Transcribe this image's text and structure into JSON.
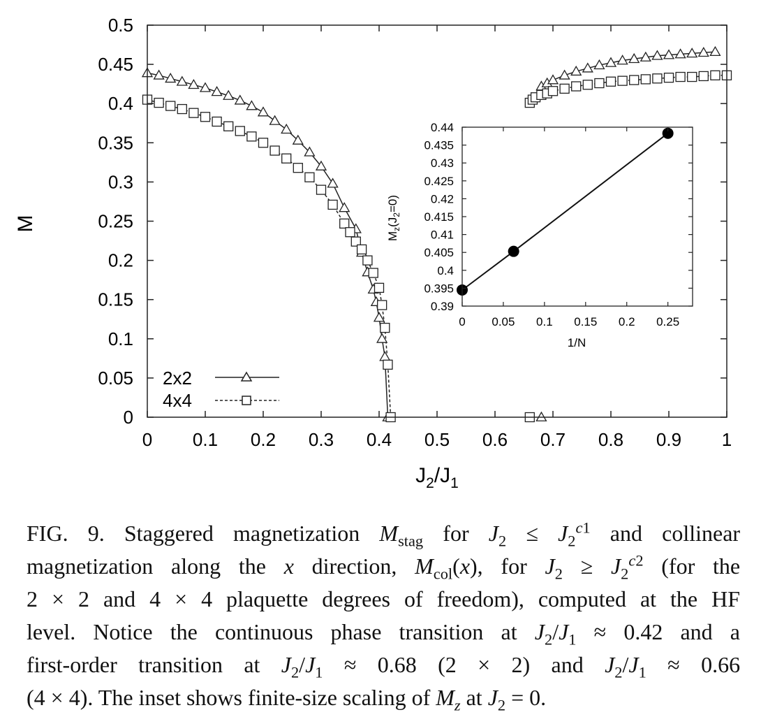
{
  "main_chart": {
    "xlabel": "J",
    "xlabel_sub1": "2",
    "xlabel_mid": "/J",
    "xlabel_sub2": "1",
    "ylabel": "M",
    "xlim": [
      0,
      1
    ],
    "ylim": [
      0,
      0.5
    ],
    "xticks": [
      "0",
      "0.1",
      "0.2",
      "0.3",
      "0.4",
      "0.5",
      "0.6",
      "0.7",
      "0.8",
      "0.9",
      "1"
    ],
    "yticks": [
      "0",
      "0.05",
      "0.1",
      "0.15",
      "0.2",
      "0.25",
      "0.3",
      "0.35",
      "0.4",
      "0.45",
      "0.5"
    ],
    "legend_2x2": "2x2",
    "legend_4x4": "4x4"
  },
  "inset_chart": {
    "xlabel": "1/N",
    "ylabel": "M_z(J_2=0)",
    "xlim": [
      0,
      0.28
    ],
    "ylim": [
      0.39,
      0.44
    ],
    "xticks": [
      "0",
      "0.05",
      "0.1",
      "0.15",
      "0.2",
      "0.25"
    ],
    "yticks": [
      "0.39",
      "0.395",
      "0.4",
      "0.405",
      "0.41",
      "0.415",
      "0.42",
      "0.425",
      "0.43",
      "0.435",
      "0.44"
    ]
  },
  "chart_data": [
    {
      "type": "line",
      "xlabel": "J2/J1",
      "ylabel": "M",
      "xlim": [
        0,
        1
      ],
      "ylim": [
        0,
        0.5
      ],
      "grid": false,
      "legend_position": "bottom-left",
      "series": [
        {
          "name": "2x2",
          "marker": "triangle",
          "line_style": "solid",
          "segments": [
            {
              "x": [
                0,
                0.02,
                0.04,
                0.06,
                0.08,
                0.1,
                0.12,
                0.14,
                0.16,
                0.18,
                0.2,
                0.22,
                0.24,
                0.26,
                0.28,
                0.3,
                0.32,
                0.34,
                0.36,
                0.37,
                0.38,
                0.39,
                0.395,
                0.4,
                0.405,
                0.41,
                0.415
              ],
              "y": [
                0.439,
                0.436,
                0.432,
                0.428,
                0.424,
                0.42,
                0.415,
                0.41,
                0.404,
                0.397,
                0.389,
                0.378,
                0.367,
                0.353,
                0.338,
                0.32,
                0.298,
                0.267,
                0.24,
                0.21,
                0.185,
                0.163,
                0.147,
                0.127,
                0.1,
                0.077,
                0
              ]
            },
            {
              "x": [
                0.68,
                0.69,
                0.7,
                0.72,
                0.74,
                0.76,
                0.78,
                0.8,
                0.82,
                0.84,
                0.86,
                0.88,
                0.9,
                0.92,
                0.94,
                0.96,
                0.98
              ],
              "y": [
                0.422,
                0.426,
                0.43,
                0.436,
                0.441,
                0.445,
                0.449,
                0.452,
                0.455,
                0.457,
                0.459,
                0.461,
                0.462,
                0.463,
                0.464,
                0.465,
                0.466
              ]
            },
            {
              "x": [
                0.68
              ],
              "y": [
                0
              ]
            }
          ]
        },
        {
          "name": "4x4",
          "marker": "square",
          "line_style": "dashed",
          "segments": [
            {
              "x": [
                0,
                0.02,
                0.04,
                0.06,
                0.08,
                0.1,
                0.12,
                0.14,
                0.16,
                0.18,
                0.2,
                0.22,
                0.24,
                0.26,
                0.28,
                0.3,
                0.32,
                0.34,
                0.35,
                0.36,
                0.37,
                0.38,
                0.39,
                0.4,
                0.405,
                0.41,
                0.415,
                0.42
              ],
              "y": [
                0.405,
                0.401,
                0.397,
                0.393,
                0.388,
                0.383,
                0.377,
                0.371,
                0.365,
                0.358,
                0.35,
                0.34,
                0.33,
                0.318,
                0.306,
                0.29,
                0.271,
                0.247,
                0.236,
                0.224,
                0.214,
                0.2,
                0.184,
                0.165,
                0.143,
                0.114,
                0.067,
                0
              ]
            },
            {
              "x": [
                0.66,
                0.665,
                0.67,
                0.68,
                0.69,
                0.7,
                0.72,
                0.74,
                0.76,
                0.78,
                0.8,
                0.82,
                0.84,
                0.86,
                0.88,
                0.9,
                0.92,
                0.94,
                0.96,
                0.98,
                1.0
              ],
              "y": [
                0.401,
                0.405,
                0.408,
                0.411,
                0.413,
                0.416,
                0.419,
                0.422,
                0.424,
                0.426,
                0.428,
                0.429,
                0.43,
                0.431,
                0.432,
                0.433,
                0.434,
                0.434,
                0.435,
                0.436,
                0.436
              ]
            },
            {
              "x": [
                0.66
              ],
              "y": [
                0
              ]
            }
          ]
        }
      ]
    },
    {
      "type": "line",
      "xlabel": "1/N",
      "ylabel": "Mz(J2=0)",
      "xlim": [
        0,
        0.28
      ],
      "ylim": [
        0.39,
        0.44
      ],
      "grid": false,
      "position": "inset, upper-right",
      "series": [
        {
          "marker": "filled-circle",
          "x": [
            0,
            0.0625,
            0.25
          ],
          "y": [
            0.3945,
            0.4053,
            0.4383
          ]
        }
      ]
    }
  ],
  "caption": {
    "fig_label": "FIG. 9.",
    "t1": "Staggered magnetization",
    "t2": "for",
    "t3": "and collinear",
    "t4": "magnetization along the",
    "t5": "direction,",
    "t6": "for",
    "t7": "(for the",
    "t8": "2 × 2 and 4 × 4 plaquette degrees of freedom), computed at the HF",
    "t9": "level. Notice the continuous phase transition at",
    "t10": "≈ 0.42 and a",
    "t11": "first-order",
    "t12": "transition",
    "t13": "at",
    "t14": "≈ 0.68",
    "t15": "(2 × 2)",
    "t16": "and",
    "t17": "≈ 0.66",
    "t18": "(4 × 4). The inset shows finite-size scaling of",
    "t19": "at",
    "t20": "= 0."
  }
}
